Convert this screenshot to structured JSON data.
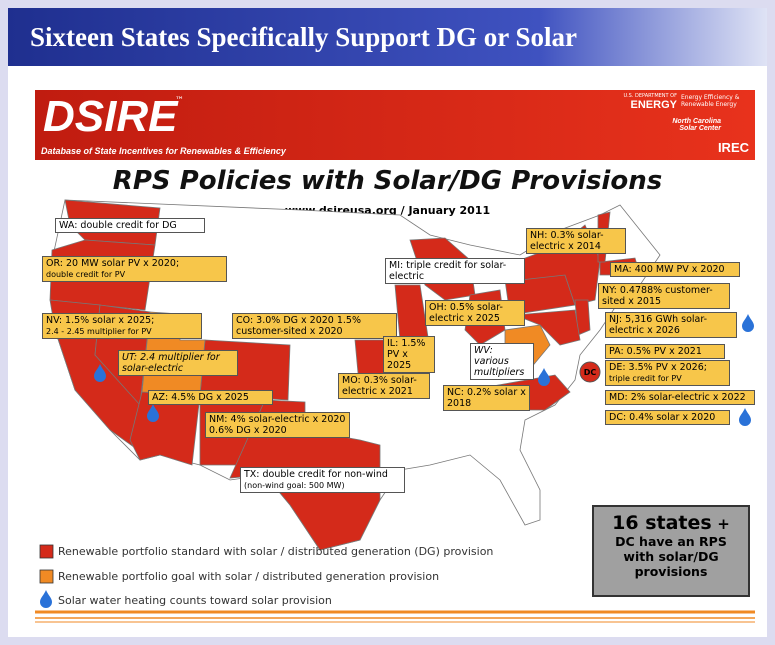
{
  "title": "Sixteen States Specifically Support DG or Solar",
  "banner": {
    "logo": "DSIRE",
    "tm": "™",
    "tagline": "Database of State Incentives for Renewables & Efficiency",
    "doe_small": "U.S. DEPARTMENT OF",
    "doe": "ENERGY",
    "eere": "Energy Efficiency & Renewable Energy",
    "ncsc": "North Carolina Solar Center",
    "irec": "IREC"
  },
  "map": {
    "title": "RPS Policies with Solar/DG Provisions",
    "url": "www.dsireusa.org",
    "date": "/ January 2011",
    "dc_marker": "DC",
    "labels": [
      {
        "text": "WA: double credit for DG"
      },
      {
        "text": "OR: 20 MW solar PV x 2020;",
        "note": "double credit for PV"
      },
      {
        "text": "NV: 1.5% solar x 2025;",
        "note": "2.4 - 2.45 multiplier for PV"
      },
      {
        "text": "UT: 2.4 multiplier for solar-electric"
      },
      {
        "text": "AZ: 4.5% DG x 2025"
      },
      {
        "text": "CO: 3.0% DG x 2020 1.5% customer-sited x 2020"
      },
      {
        "text": "NM: 4% solar-electric x 2020 0.6% DG x 2020"
      },
      {
        "text": "TX: double credit for non-wind",
        "note": "(non-wind goal: 500 MW)"
      },
      {
        "text": "MI: triple credit for solar-electric"
      },
      {
        "text": "IL: 1.5% PV x 2025"
      },
      {
        "text": "OH: 0.5% solar-electric x 2025"
      },
      {
        "text": "MO: 0.3% solar-electric x 2021"
      },
      {
        "text": "WV: various multipliers"
      },
      {
        "text": "NC: 0.2% solar x 2018"
      },
      {
        "text": "NH: 0.3% solar-electric x 2014"
      },
      {
        "text": "MA: 400 MW PV x 2020"
      },
      {
        "text": "NY: 0.4788% customer-sited x 2015"
      },
      {
        "text": "NJ: 5,316 GWh solar-electric x 2026"
      },
      {
        "text": "PA: 0.5% PV x 2021"
      },
      {
        "text": "DE: 3.5% PV x 2026;",
        "note": "triple credit for PV"
      },
      {
        "text": "MD: 2% solar-electric x 2022"
      },
      {
        "text": "DC: 0.4% solar x 2020"
      }
    ]
  },
  "summary": {
    "count": "16 states",
    "plus": "+",
    "rest": "DC have an RPS with solar/DG provisions"
  },
  "legend": [
    "Renewable portfolio standard with solar / distributed generation (DG) provision",
    "Renewable portfolio goal with solar / distributed generation provision",
    "Solar water heating counts toward solar provision"
  ]
}
